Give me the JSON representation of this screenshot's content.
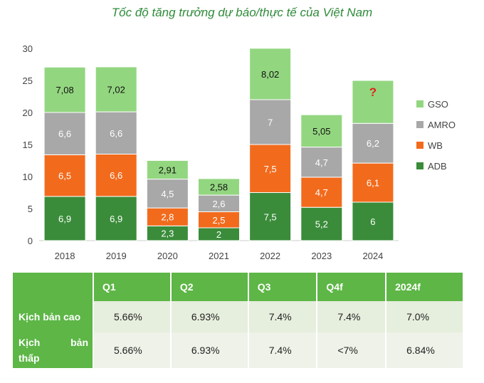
{
  "chart_data": {
    "type": "bar",
    "stacked": true,
    "title": "Tốc độ tăng trưởng dự báo/thực tế của Việt Nam",
    "categories": [
      "2018",
      "2019",
      "2020",
      "2021",
      "2022",
      "2023",
      "2024"
    ],
    "ylim": [
      0,
      30
    ],
    "yticks": [
      0,
      5,
      10,
      15,
      20,
      25,
      30
    ],
    "legend_position": "right",
    "series": [
      {
        "name": "ADB",
        "color": "#3a8c3a",
        "values": [
          6.9,
          6.9,
          2.3,
          2,
          7.5,
          5.2,
          6
        ],
        "labels": [
          "6,9",
          "6,9",
          "2,3",
          "2",
          "7,5",
          "5,2",
          "6"
        ]
      },
      {
        "name": "WB",
        "color": "#f26b1d",
        "values": [
          6.5,
          6.6,
          2.8,
          2.5,
          7.5,
          4.7,
          6.1
        ],
        "labels": [
          "6,5",
          "6,6",
          "2,8",
          "2,5",
          "7,5",
          "4,7",
          "6,1"
        ]
      },
      {
        "name": "AMRO",
        "color": "#a8a8a8",
        "values": [
          6.6,
          6.6,
          4.5,
          2.6,
          7,
          4.7,
          6.2
        ],
        "labels": [
          "6,6",
          "6,6",
          "4,5",
          "2,6",
          "7",
          "4,7",
          "6,2"
        ]
      },
      {
        "name": "GSO",
        "color": "#93d680",
        "values": [
          7.08,
          7.02,
          2.91,
          2.58,
          8.02,
          5.05,
          6.7
        ],
        "labels": [
          "7,08",
          "7,02",
          "2,91",
          "2,58",
          "8,02",
          "5,05",
          "?"
        ]
      }
    ]
  },
  "table": {
    "headers": [
      "",
      "Q1",
      "Q2",
      "Q3",
      "Q4f",
      "2024f"
    ],
    "rows": [
      {
        "label": "Kịch bản cao",
        "cells": [
          "5.66%",
          "6.93%",
          "7.4%",
          "7.4%",
          "7.0%"
        ]
      },
      {
        "label_line1a": "Kịch",
        "label_line1b": "bản",
        "label_line2": "thấp",
        "cells": [
          "5.66%",
          "6.93%",
          "7.4%",
          "<7%",
          "6.84%"
        ]
      }
    ]
  }
}
